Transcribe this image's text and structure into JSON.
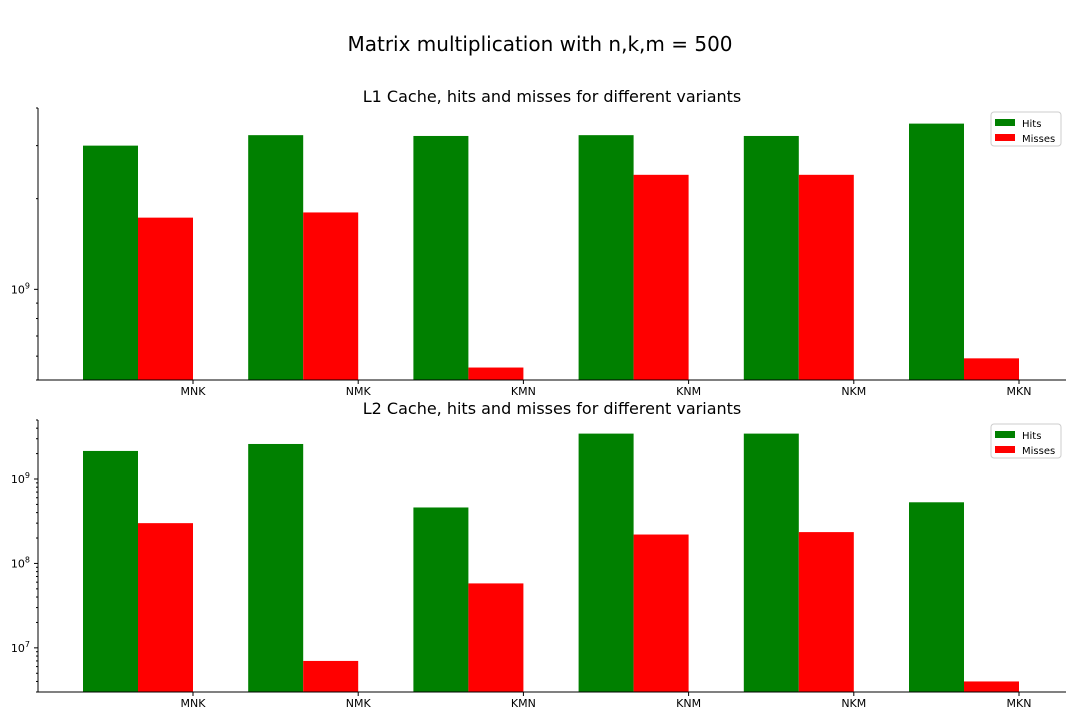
{
  "chart_data": {
    "title": "Matrix multiplication with n,k,m = 500",
    "panels": [
      {
        "type": "bar",
        "title": "L1 Cache, hits and misses for different variants",
        "yscale": "log",
        "categories": [
          "MNK",
          "NMK",
          "KMN",
          "KNM",
          "NKM",
          "MKN"
        ],
        "series": [
          {
            "name": "Hits",
            "color": "#008000",
            "values": [
              3000000000,
              3250000000,
              3230000000,
              3250000000,
              3230000000,
              3550000000
            ]
          },
          {
            "name": "Misses",
            "color": "#ff0000",
            "values": [
              1730000000,
              1800000000,
              550000000,
              2400000000,
              2400000000,
              590000000
            ]
          }
        ],
        "ylim": [
          500000000,
          4000000000
        ],
        "yticks": [
          {
            "value": 1000000000,
            "base": "10",
            "exp": "9"
          }
        ],
        "legend": "top-right",
        "grid": false
      },
      {
        "type": "bar",
        "title": "L2 Cache, hits and misses for different variants",
        "yscale": "log",
        "categories": [
          "MNK",
          "NMK",
          "KMN",
          "KNM",
          "NKM",
          "MKN"
        ],
        "series": [
          {
            "name": "Hits",
            "color": "#008000",
            "values": [
              2150000000,
              2600000000,
              460000000,
              3450000000,
              3450000000,
              530000000
            ]
          },
          {
            "name": "Misses",
            "color": "#ff0000",
            "values": [
              300000000,
              7000000,
              58000000,
              220000000,
              235000000,
              4000000
            ]
          }
        ],
        "ylim": [
          3000000,
          5000000000
        ],
        "yticks": [
          {
            "value": 10000000,
            "base": "10",
            "exp": "7"
          },
          {
            "value": 100000000,
            "base": "10",
            "exp": "8"
          },
          {
            "value": 1000000000,
            "base": "10",
            "exp": "9"
          }
        ],
        "legend": "top-right",
        "grid": false
      }
    ]
  }
}
